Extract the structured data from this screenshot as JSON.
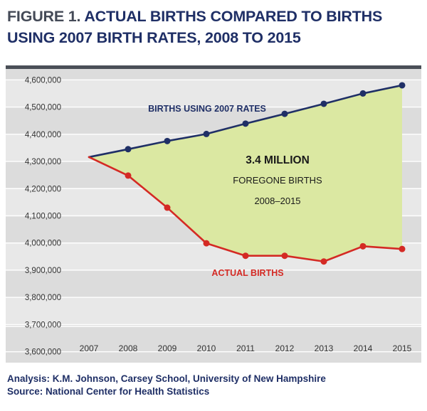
{
  "figure": {
    "label": "FIGURE 1.",
    "title": "ACTUAL BIRTHS COMPARED TO BIRTHS USING 2007 BIRTH RATES, 2008 TO 2015"
  },
  "chart_data": {
    "type": "line",
    "title": "FIGURE 1. ACTUAL BIRTHS COMPARED TO BIRTHS USING 2007 BIRTH RATES, 2008 TO 2015",
    "xlabel": "",
    "ylabel": "",
    "categories": [
      "2007",
      "2008",
      "2009",
      "2010",
      "2011",
      "2012",
      "2013",
      "2014",
      "2015"
    ],
    "y_tick_labels": [
      "4,600,000",
      "4,500,000",
      "4,400,000",
      "4,300,000",
      "4,200,000",
      "4,100,000",
      "4,000,000",
      "3,900,000",
      "3,800,000",
      "3,700,000",
      "3,600,000"
    ],
    "y_ticks": [
      4600000,
      4500000,
      4400000,
      4300000,
      4200000,
      4100000,
      4000000,
      3900000,
      3800000,
      3700000,
      3600000
    ],
    "ylim": [
      3560000,
      4640000
    ],
    "grid": true,
    "series": [
      {
        "name": "BIRTHS USING 2007 RATES",
        "color": "#1f2f66",
        "values": [
          4316000,
          4345000,
          4375000,
          4401000,
          4439000,
          4475000,
          4512000,
          4550000,
          4580000
        ]
      },
      {
        "name": "ACTUAL BIRTHS",
        "color": "#d42a24",
        "values": [
          4316000,
          4248000,
          4130000,
          3999000,
          3953000,
          3953000,
          3932000,
          3988000,
          3978000
        ]
      }
    ],
    "fill_color": "#dbe8a2",
    "annotation": {
      "headline": "3.4 MILLION",
      "line2": "FOREGONE BIRTHS",
      "line3": "2008–2015"
    }
  },
  "source": {
    "analysis": "Analysis: K.M. Johnson, Carsey School, University of New Hampshire",
    "source": "Source: National Center for Health Statistics"
  }
}
